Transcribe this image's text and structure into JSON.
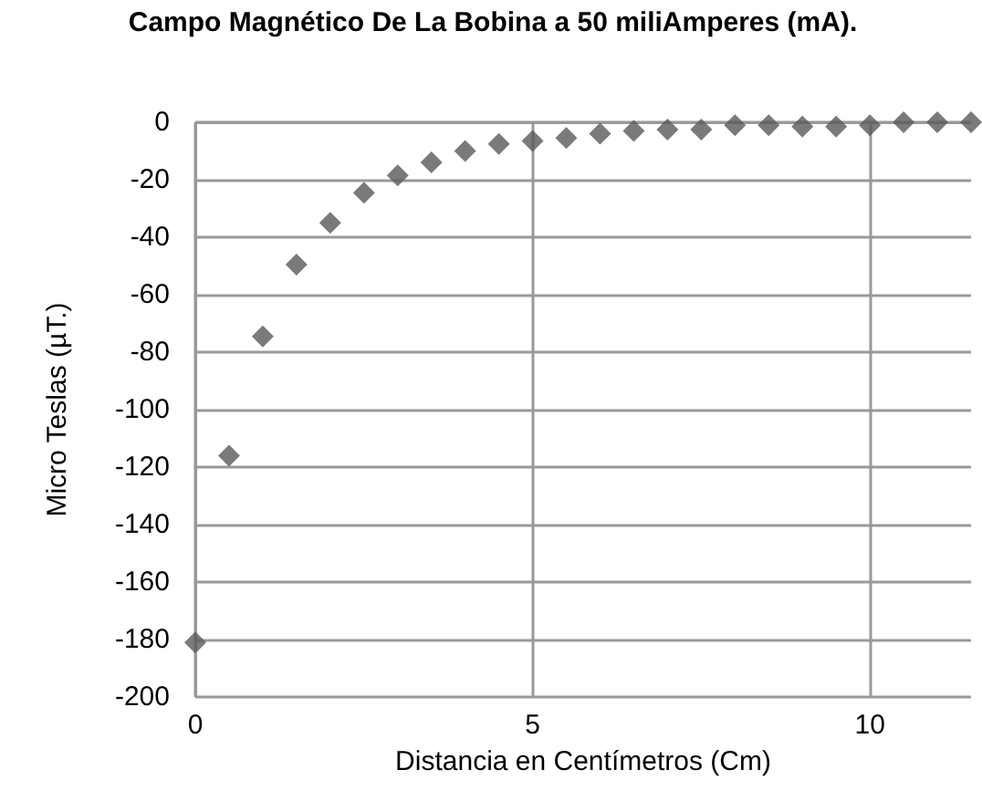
{
  "chart_data": {
    "type": "scatter",
    "title": "Campo Magnético De La Bobina a 50 miliAmperes (mA).",
    "xlabel": "Distancia en Centímetros (Cm)",
    "ylabel": "Micro Teslas (µT.)",
    "x": [
      0,
      0.5,
      1,
      1.5,
      2,
      2.5,
      3,
      3.5,
      4,
      4.5,
      5,
      5.5,
      6,
      6.5,
      7,
      7.5,
      8,
      8.5,
      9,
      9.5,
      10,
      10.5,
      11,
      11.5
    ],
    "series": [
      {
        "color": "#595959",
        "values": [
          -181,
          -116,
          -74.5,
          -49.5,
          -35,
          -24.5,
          -18.5,
          -14,
          -10,
          -7.5,
          -6.5,
          -5.5,
          -4,
          -3,
          -2.5,
          -2.5,
          -1,
          -1,
          -1.5,
          -1.5,
          -1,
          0,
          0,
          0
        ]
      }
    ],
    "xlim": [
      0,
      11.5
    ],
    "xticks": [
      0,
      5,
      10
    ],
    "ylim": [
      -200,
      0
    ],
    "yticks": [
      -200,
      -180,
      -160,
      -140,
      -120,
      -100,
      -80,
      -60,
      -40,
      -20,
      0
    ],
    "grid": true,
    "marker": "diamond"
  }
}
